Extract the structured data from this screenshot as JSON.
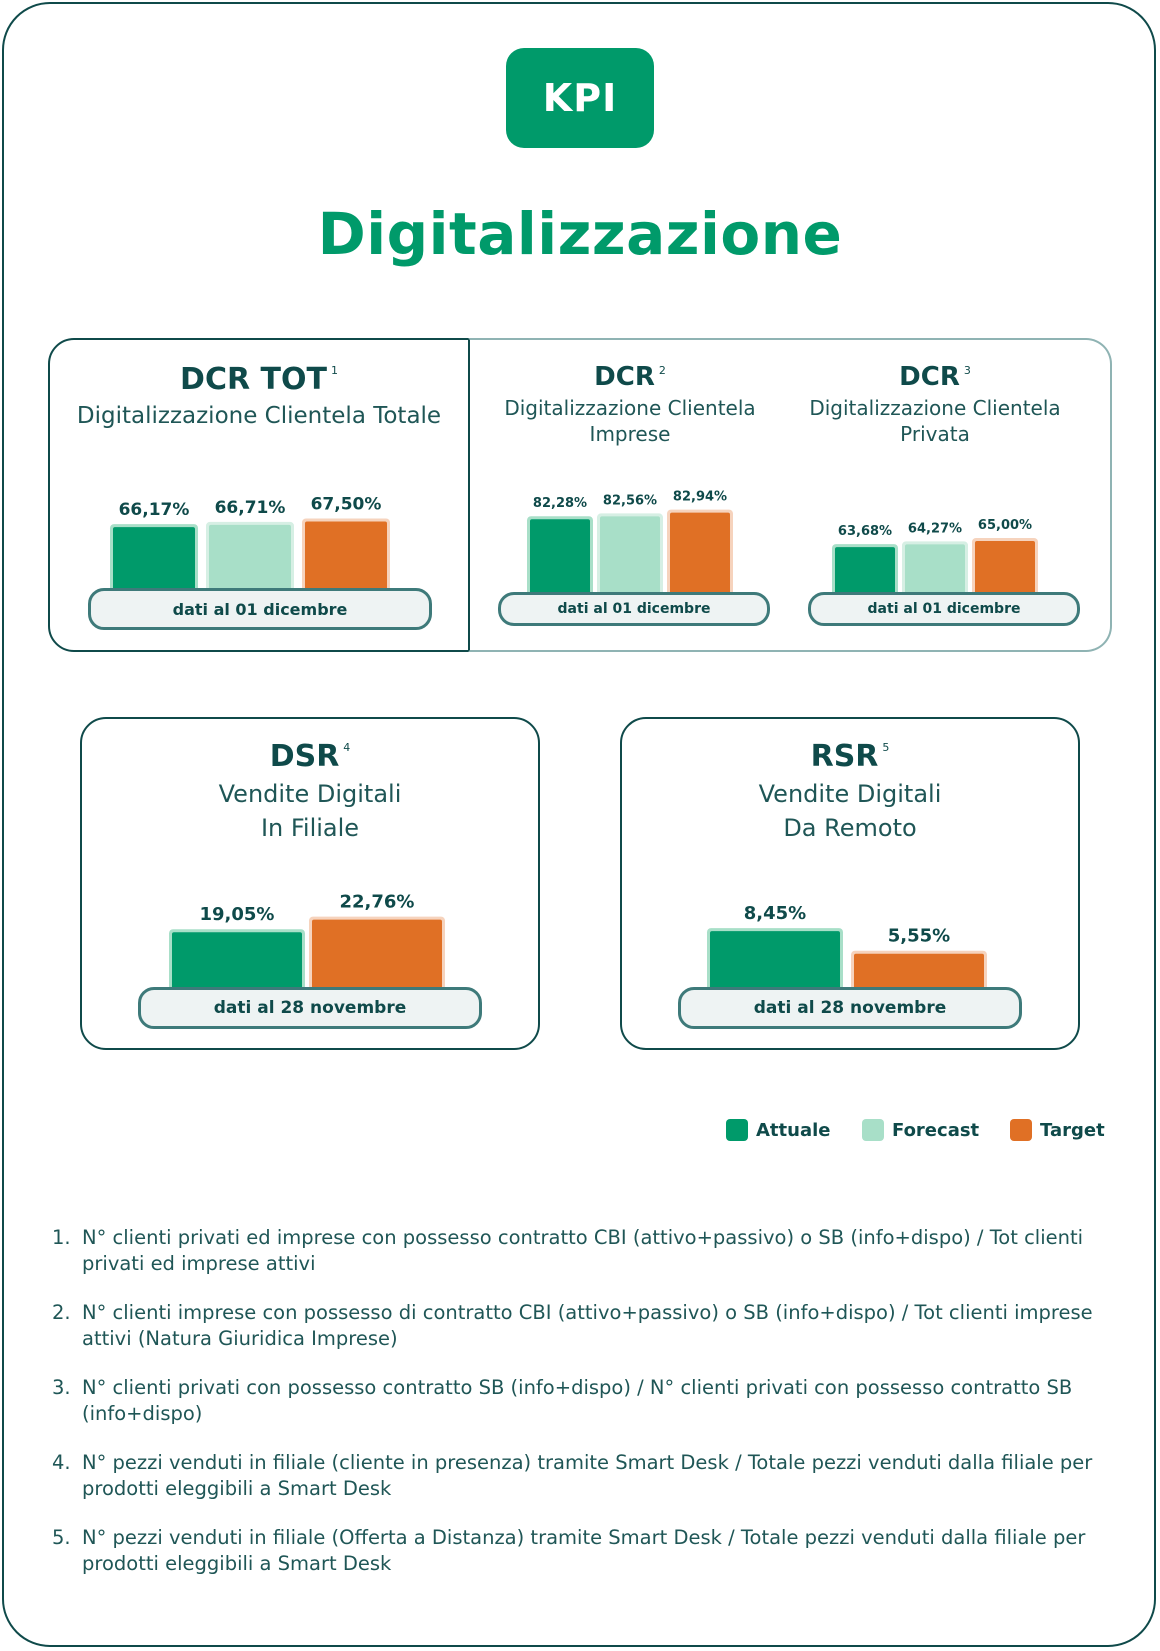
{
  "badge": "KPI",
  "title": "Digitalizzazione",
  "colors": {
    "attuale": "#009a6a",
    "forecast": "#a8dfc8",
    "target": "#e07025",
    "dark": "#0f4a4a"
  },
  "panels": {
    "dcr_tot": {
      "title": "DCR TOT",
      "sup": "1",
      "subtitle": "Digitalizzazione Clientela Totale",
      "date": "dati al 01 dicembre"
    },
    "dcr_imprese": {
      "title": "DCR",
      "sup": "2",
      "subtitle_line1": "Digitalizzazione Clientela",
      "subtitle_line2": "Imprese",
      "date": "dati al 01 dicembre"
    },
    "dcr_privata": {
      "title": "DCR",
      "sup": "3",
      "subtitle_line1": "Digitalizzazione Clientela",
      "subtitle_line2": "Privata",
      "date": "dati al 01 dicembre"
    },
    "dsr": {
      "title": "DSR",
      "sup": "4",
      "subtitle_line1": "Vendite Digitali",
      "subtitle_line2": "In Filiale",
      "date": "dati al 28 novembre"
    },
    "rsr": {
      "title": "RSR",
      "sup": "5",
      "subtitle_line1": "Vendite Digitali",
      "subtitle_line2": "Da Remoto",
      "date": "dati al 28 novembre"
    }
  },
  "chart_data": [
    {
      "type": "bar",
      "title": "DCR TOT",
      "categories": [
        "Attuale",
        "Forecast",
        "Target"
      ],
      "values": [
        66.17,
        66.71,
        67.5
      ],
      "labels": [
        "66,17%",
        "66,71%",
        "67,50%"
      ]
    },
    {
      "type": "bar",
      "title": "DCR",
      "categories": [
        "Attuale",
        "Forecast",
        "Target"
      ],
      "values": [
        82.28,
        82.56,
        82.94
      ],
      "labels": [
        "82,28%",
        "82,56%",
        "82,94%"
      ]
    },
    {
      "type": "bar",
      "title": "DCR",
      "categories": [
        "Attuale",
        "Forecast",
        "Target"
      ],
      "values": [
        63.68,
        64.27,
        65.0
      ],
      "labels": [
        "63,68%",
        "64,27%",
        "65,00%"
      ]
    },
    {
      "type": "bar",
      "title": "DSR",
      "categories": [
        "Attuale",
        "Target"
      ],
      "values": [
        19.05,
        22.76
      ],
      "labels": [
        "19,05%",
        "22,76%"
      ]
    },
    {
      "type": "bar",
      "title": "RSR",
      "categories": [
        "Attuale",
        "Target"
      ],
      "values": [
        8.45,
        5.55
      ],
      "labels": [
        "8,45%",
        "5,55%"
      ]
    }
  ],
  "legend": {
    "attuale": "Attuale",
    "forecast": "Forecast",
    "target": "Target"
  },
  "notes": [
    {
      "num": "1.",
      "text": "N° clienti privati ed imprese con possesso contratto CBI (attivo+passivo) o SB (info+dispo) / Tot clienti privati ed imprese attivi"
    },
    {
      "num": "2.",
      "text": "N° clienti imprese con possesso di contratto CBI (attivo+passivo)  o SB (info+dispo) / Tot clienti imprese attivi (Natura Giuridica Imprese)"
    },
    {
      "num": "3.",
      "text": "N° clienti privati con possesso contratto SB (info+dispo) / N° clienti privati con possesso contratto SB (info+dispo)"
    },
    {
      "num": "4.",
      "text": "N° pezzi venduti in filiale (cliente in presenza) tramite Smart Desk / Totale pezzi venduti dalla filiale per prodotti eleggibili a Smart Desk"
    },
    {
      "num": "5.",
      "text": "N° pezzi venduti in filiale (Offerta a Distanza) tramite Smart Desk / Totale pezzi venduti dalla filiale per prodotti eleggibili a Smart Desk"
    }
  ]
}
